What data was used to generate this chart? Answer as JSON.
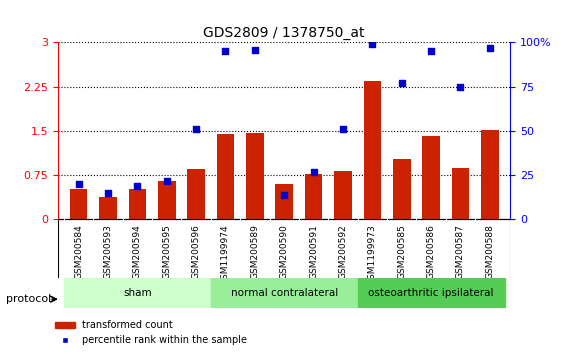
{
  "title": "GDS2809 / 1378750_at",
  "samples": [
    "GSM200584",
    "GSM200593",
    "GSM200594",
    "GSM200595",
    "GSM200596",
    "GSM1199974",
    "GSM200589",
    "GSM200590",
    "GSM200591",
    "GSM200592",
    "GSM1199973",
    "GSM200585",
    "GSM200586",
    "GSM200587",
    "GSM200588"
  ],
  "transformed_count": [
    0.52,
    0.38,
    0.52,
    0.65,
    0.85,
    1.45,
    1.47,
    0.6,
    0.77,
    0.82,
    2.35,
    1.02,
    1.42,
    0.88,
    1.52
  ],
  "percentile_rank_pct": [
    20,
    15,
    19,
    22,
    51,
    95,
    96,
    14,
    27,
    51,
    99,
    77,
    95,
    75,
    97
  ],
  "groups": [
    {
      "label": "sham",
      "start": 0,
      "end": 5,
      "color": "#ccffcc"
    },
    {
      "label": "normal contralateral",
      "start": 5,
      "end": 10,
      "color": "#99ee99"
    },
    {
      "label": "osteoarthritic ipsilateral",
      "start": 10,
      "end": 15,
      "color": "#55cc55"
    }
  ],
  "ylim_left": [
    0,
    3
  ],
  "ylim_right": [
    0,
    100
  ],
  "yticks_left": [
    0,
    0.75,
    1.5,
    2.25,
    3.0
  ],
  "ytick_labels_left": [
    "0",
    "0.75",
    "1.5",
    "2.25",
    "3"
  ],
  "yticks_right": [
    0,
    25,
    50,
    75,
    100
  ],
  "bar_color": "#cc2200",
  "scatter_color": "#0000cc",
  "protocol_label": "protocol",
  "legend_items": [
    {
      "label": "transformed count",
      "color": "#cc2200",
      "type": "bar"
    },
    {
      "label": "percentile rank within the sample",
      "color": "#0000cc",
      "type": "scatter"
    }
  ]
}
